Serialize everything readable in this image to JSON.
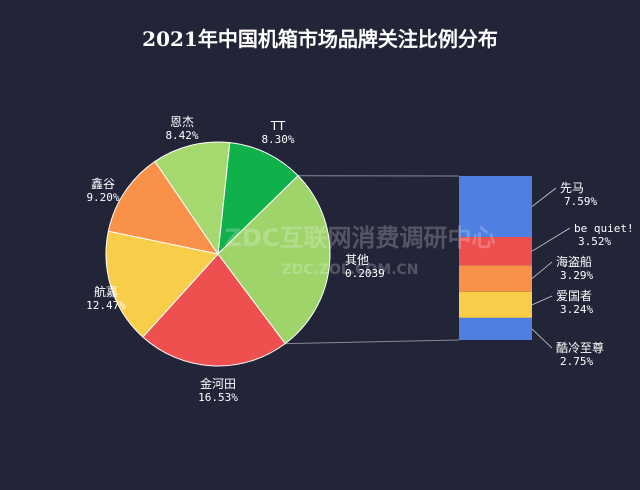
{
  "chart_data": {
    "type": "pie",
    "title": "2021年中国机箱市场品牌关注比例分布",
    "slices": [
      {
        "name": "TT",
        "label": "8.30%",
        "value": 8.3,
        "color": "#10b04a"
      },
      {
        "name": "其他",
        "label": "0.2039",
        "value": 20.39,
        "color": "#9fd46a"
      },
      {
        "name": "金河田",
        "label": "16.53%",
        "value": 16.53,
        "color": "#ee5050"
      },
      {
        "name": "航嘉",
        "label": "12.47%",
        "value": 12.47,
        "color": "#f8cd4a"
      },
      {
        "name": "鑫谷",
        "label": "9.20%",
        "value": 9.2,
        "color": "#f99148"
      },
      {
        "name": "恩杰",
        "label": "8.42%",
        "value": 8.42,
        "color": "#a5d86e"
      }
    ],
    "breakdown_of": "其他",
    "breakdown": [
      {
        "name": "先马",
        "label": "7.59%",
        "value": 7.59,
        "color": "#4f7fe0"
      },
      {
        "name": "be quiet!",
        "label": "3.52%",
        "value": 3.52,
        "color": "#ee5050"
      },
      {
        "name": "海盗船",
        "label": "3.29%",
        "value": 3.29,
        "color": "#f99148"
      },
      {
        "name": "爱国者",
        "label": "3.24%",
        "value": 3.24,
        "color": "#f8cd4a"
      },
      {
        "name": "酷冷至尊",
        "label": "2.75%",
        "value": 2.75,
        "color": "#4f7fe0"
      }
    ]
  },
  "watermark": {
    "line1": "ZDC互联网消费调研中心",
    "line2": "ZDC.ZOL.COM.CN"
  }
}
